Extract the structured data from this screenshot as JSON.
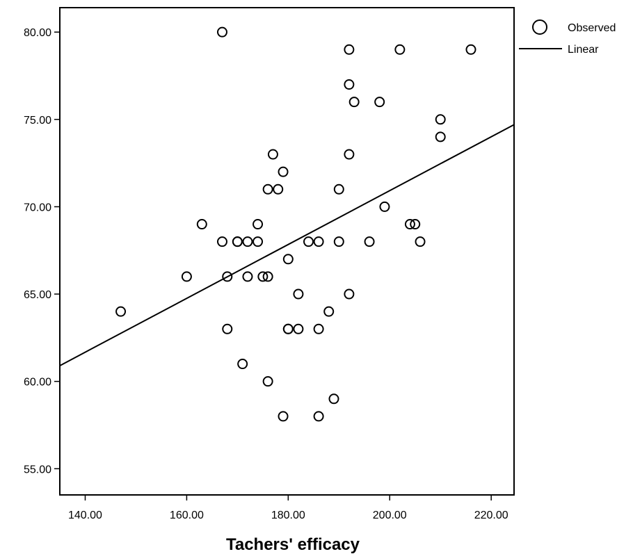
{
  "chart_data": {
    "type": "scatter",
    "title": "",
    "xlabel": "Tachers' efficacy",
    "ylabel": "",
    "xlim": [
      135.0,
      224.5
    ],
    "ylim": [
      53.5,
      81.4
    ],
    "x_ticks": [
      140,
      160,
      180,
      200,
      220
    ],
    "x_tick_labels": [
      "140.00",
      "160.00",
      "180.00",
      "200.00",
      "220.00"
    ],
    "y_ticks": [
      55,
      60,
      65,
      70,
      75,
      80
    ],
    "y_tick_labels": [
      "55.00",
      "60.00",
      "65.00",
      "70.00",
      "75.00",
      "80.00"
    ],
    "grid": false,
    "legend_position": "right",
    "legend": [
      {
        "label": "Observed",
        "marker": "circle"
      },
      {
        "label": "Linear",
        "marker": "line"
      }
    ],
    "series": [
      {
        "name": "Observed",
        "points": [
          [
            147,
            64
          ],
          [
            160,
            66
          ],
          [
            163,
            69
          ],
          [
            167,
            80
          ],
          [
            167,
            68
          ],
          [
            168,
            66
          ],
          [
            168,
            63
          ],
          [
            170,
            68
          ],
          [
            170,
            68
          ],
          [
            171,
            61
          ],
          [
            172,
            68
          ],
          [
            172,
            66
          ],
          [
            174,
            69
          ],
          [
            174,
            68
          ],
          [
            175,
            66
          ],
          [
            176,
            66
          ],
          [
            176,
            71
          ],
          [
            176,
            60
          ],
          [
            177,
            73
          ],
          [
            178,
            71
          ],
          [
            179,
            72
          ],
          [
            179,
            58
          ],
          [
            180,
            67
          ],
          [
            180,
            63
          ],
          [
            180,
            63
          ],
          [
            182,
            65
          ],
          [
            182,
            63
          ],
          [
            184,
            68
          ],
          [
            186,
            68
          ],
          [
            186,
            63
          ],
          [
            186,
            58
          ],
          [
            188,
            64
          ],
          [
            189,
            59
          ],
          [
            190,
            71
          ],
          [
            190,
            68
          ],
          [
            192,
            79
          ],
          [
            192,
            77
          ],
          [
            192,
            73
          ],
          [
            192,
            65
          ],
          [
            193,
            76
          ],
          [
            196,
            68
          ],
          [
            198,
            76
          ],
          [
            199,
            70
          ],
          [
            202,
            79
          ],
          [
            204,
            69
          ],
          [
            205,
            69
          ],
          [
            206,
            68
          ],
          [
            210,
            75
          ],
          [
            210,
            74
          ],
          [
            216,
            79
          ]
        ]
      },
      {
        "name": "Linear",
        "type": "line",
        "points": [
          [
            135.0,
            60.9
          ],
          [
            224.5,
            74.7
          ]
        ]
      }
    ]
  }
}
